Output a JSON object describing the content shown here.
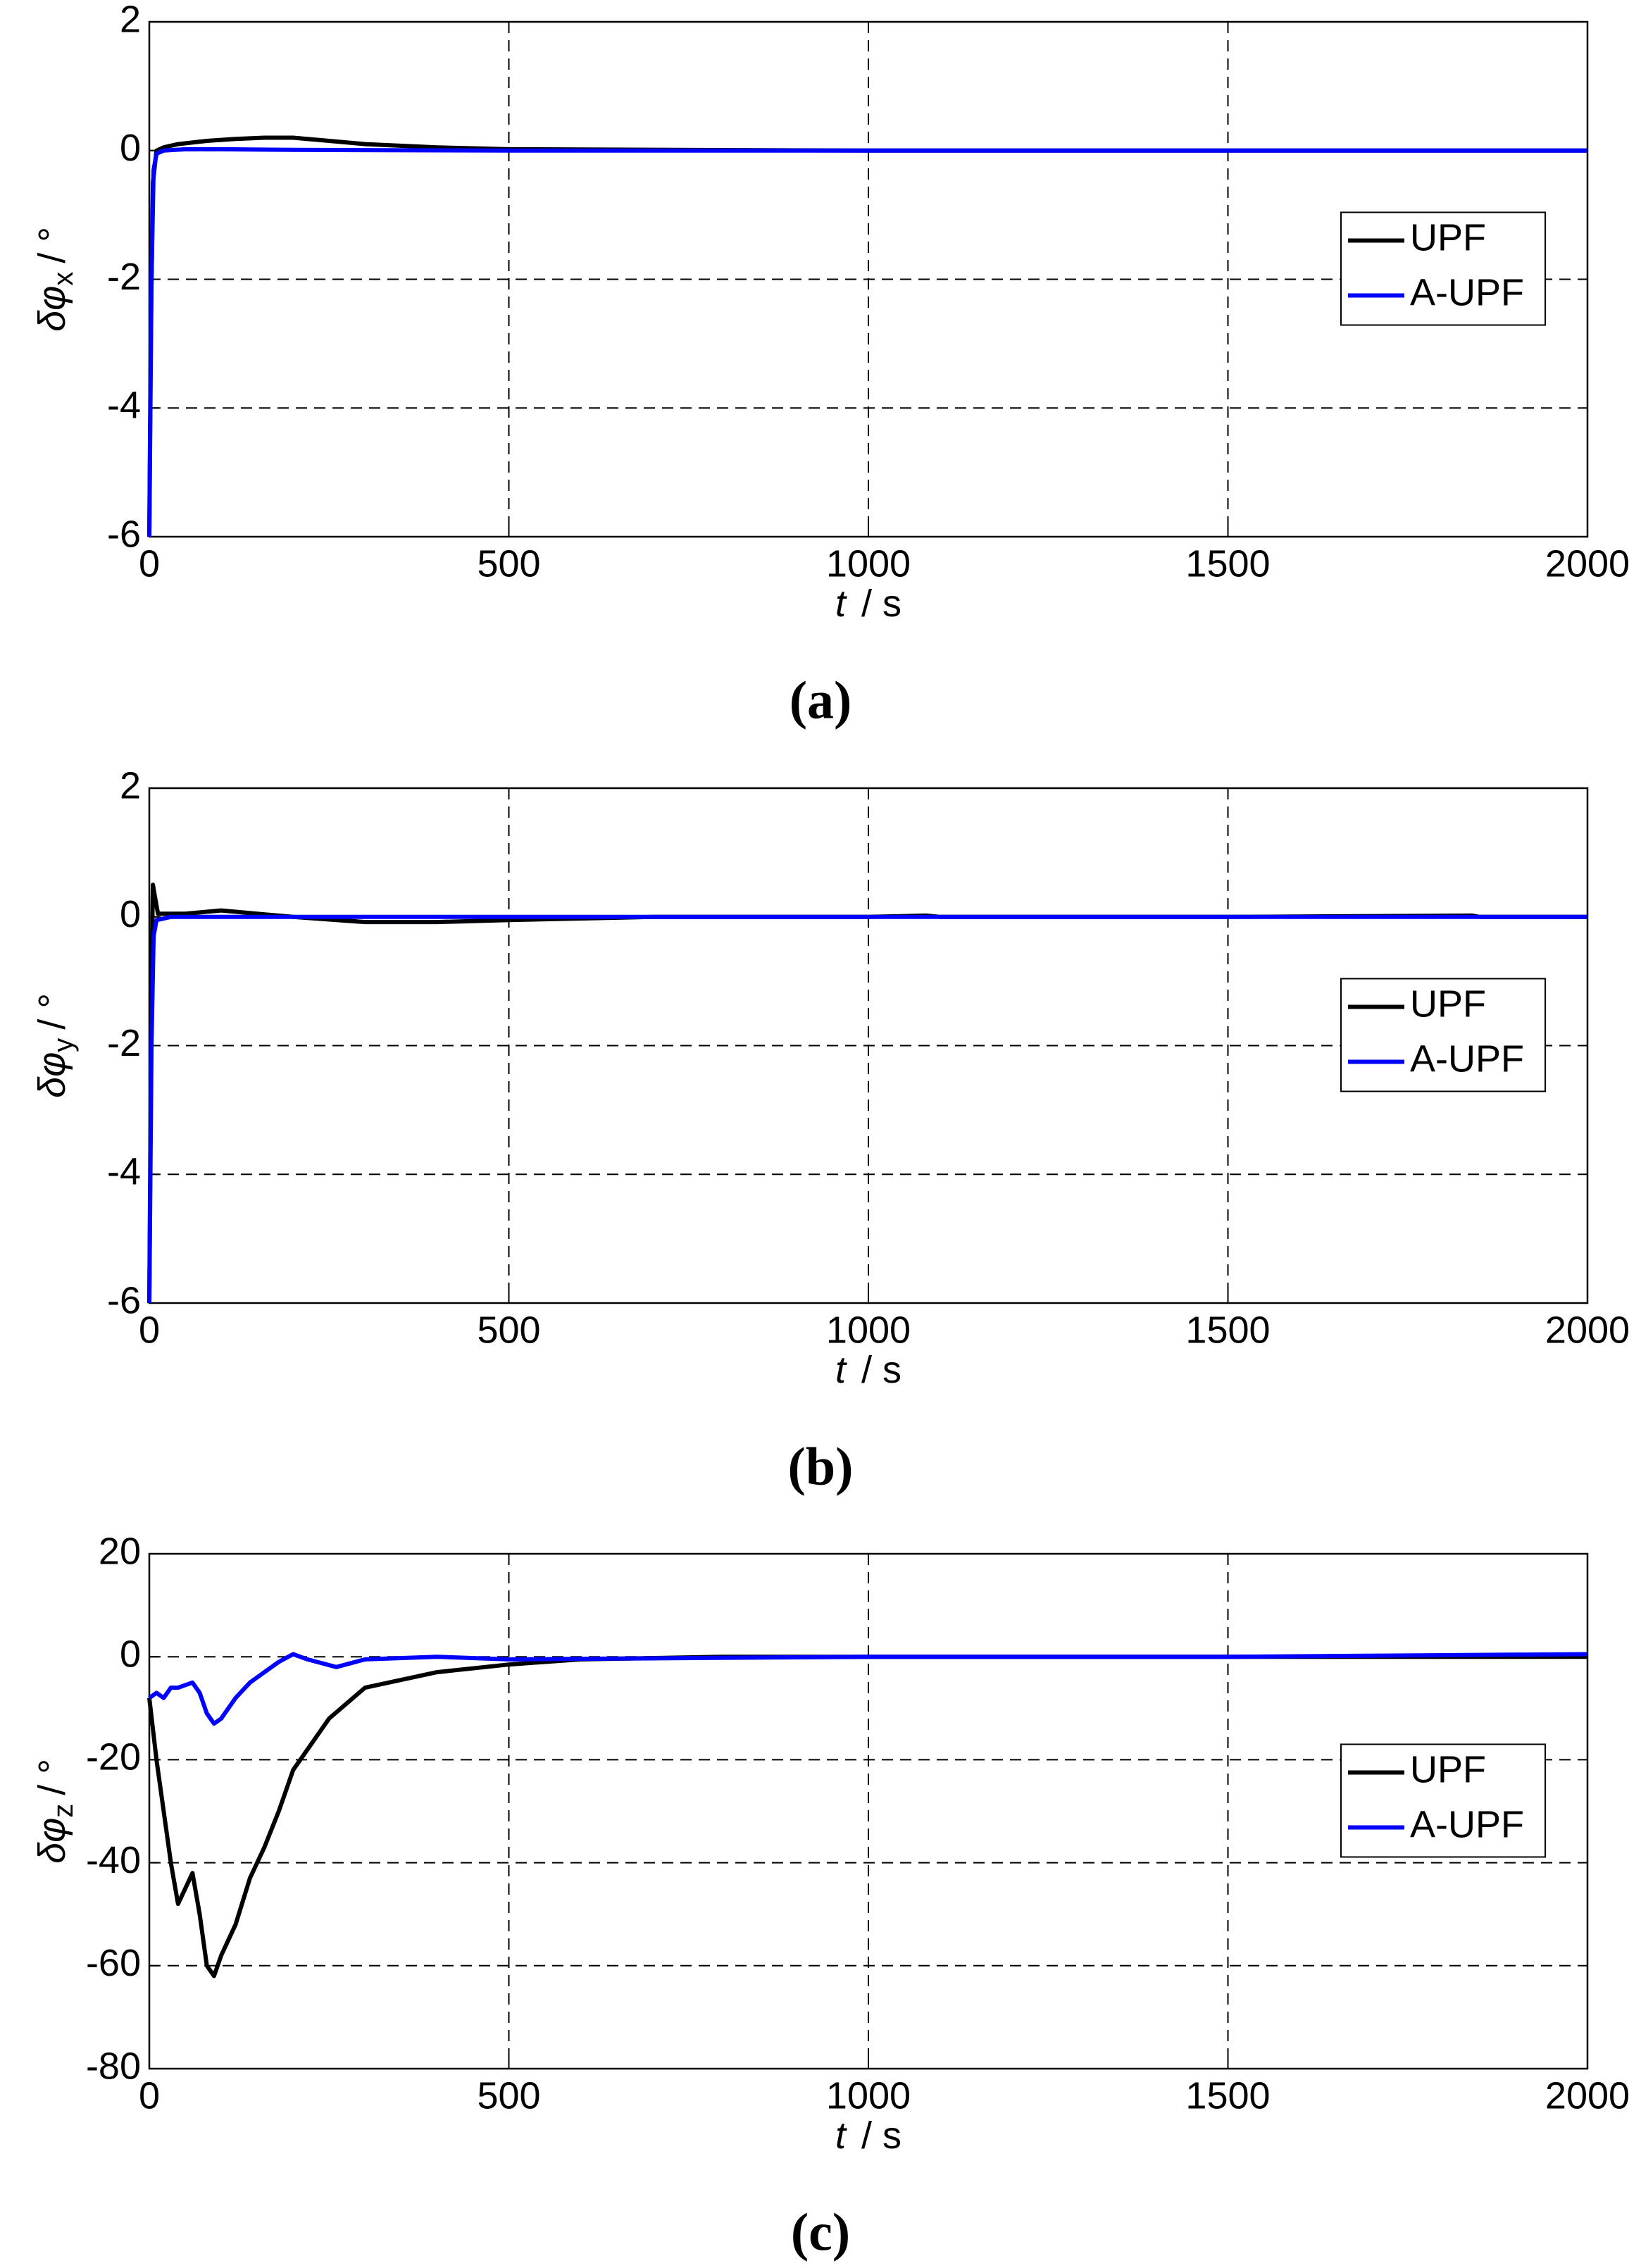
{
  "chart_data": [
    {
      "type": "line",
      "caption": "(a)",
      "xlabel": {
        "symbol": "t",
        "unit": "/ s"
      },
      "ylabel": {
        "symbol": "δφ",
        "subscript": "x",
        "unit": "/ °"
      },
      "xlim": [
        0,
        2000
      ],
      "xticks": [
        0,
        500,
        1000,
        1500,
        2000
      ],
      "ylim": [
        -6,
        2
      ],
      "yticks": [
        -6,
        -4,
        -2,
        0,
        2
      ],
      "grid": true,
      "legend": "right",
      "series": [
        {
          "name": "UPF",
          "color": "#000000",
          "x": [
            0,
            2,
            5,
            10,
            20,
            40,
            80,
            120,
            160,
            200,
            250,
            300,
            400,
            500,
            1000,
            1500,
            2000
          ],
          "values": [
            -6,
            -3,
            -0.5,
            0,
            0.05,
            0.1,
            0.15,
            0.18,
            0.2,
            0.2,
            0.15,
            0.1,
            0.05,
            0.02,
            0,
            0,
            0
          ]
        },
        {
          "name": "A-UPF",
          "color": "#0000ff",
          "x": [
            0,
            3,
            6,
            10,
            20,
            50,
            100,
            200,
            500,
            1000,
            2000
          ],
          "values": [
            -6,
            -2,
            -0.3,
            -0.05,
            0,
            0.02,
            0.02,
            0.01,
            0,
            0,
            0
          ]
        }
      ]
    },
    {
      "type": "line",
      "caption": "(b)",
      "xlabel": {
        "symbol": "t",
        "unit": "/ s"
      },
      "ylabel": {
        "symbol": "δφ",
        "subscript": "y",
        "unit": "/ °"
      },
      "xlim": [
        0,
        2000
      ],
      "xticks": [
        0,
        500,
        1000,
        1500,
        2000
      ],
      "ylim": [
        -6,
        2
      ],
      "yticks": [
        -6,
        -4,
        -2,
        0,
        2
      ],
      "grid": true,
      "legend": "right",
      "series": [
        {
          "name": "UPF",
          "color": "#000000",
          "x": [
            0,
            3,
            5,
            8,
            12,
            20,
            50,
            100,
            150,
            200,
            300,
            400,
            500,
            700,
            1000,
            1080,
            1100,
            1500,
            1840,
            1850,
            2000
          ],
          "values": [
            -6,
            -1,
            0.5,
            0.3,
            0.05,
            0.05,
            0.05,
            0.1,
            0.05,
            0,
            -0.08,
            -0.08,
            -0.05,
            0,
            0,
            0.02,
            0,
            0,
            0.02,
            0,
            0
          ]
        },
        {
          "name": "A-UPF",
          "color": "#0000ff",
          "x": [
            0,
            3,
            6,
            10,
            30,
            100,
            500,
            2000
          ],
          "values": [
            -6,
            -2,
            -0.3,
            -0.05,
            0,
            0,
            0,
            0
          ]
        }
      ]
    },
    {
      "type": "line",
      "caption": "(c)",
      "xlabel": {
        "symbol": "t",
        "unit": "/ s"
      },
      "ylabel": {
        "symbol": "δφ",
        "subscript": "z",
        "unit": "/ °"
      },
      "xlim": [
        0,
        2000
      ],
      "xticks": [
        0,
        500,
        1000,
        1500,
        2000
      ],
      "ylim": [
        -80,
        20
      ],
      "yticks": [
        -80,
        -60,
        -40,
        -20,
        0,
        20
      ],
      "grid": true,
      "legend": "right",
      "series": [
        {
          "name": "UPF",
          "color": "#000000",
          "x": [
            0,
            10,
            15,
            20,
            30,
            40,
            50,
            60,
            70,
            80,
            90,
            100,
            120,
            140,
            160,
            180,
            200,
            250,
            300,
            400,
            500,
            600,
            800,
            1000,
            1500,
            2000
          ],
          "values": [
            -8,
            -20,
            -25,
            -30,
            -40,
            -48,
            -45,
            -42,
            -50,
            -60,
            -62,
            -58,
            -52,
            -43,
            -37,
            -30,
            -22,
            -12,
            -6,
            -3,
            -1.5,
            -0.5,
            0,
            0,
            0,
            0
          ]
        },
        {
          "name": "A-UPF",
          "color": "#0000ff",
          "x": [
            0,
            10,
            20,
            30,
            40,
            50,
            60,
            70,
            80,
            90,
            100,
            120,
            140,
            160,
            180,
            200,
            220,
            260,
            300,
            400,
            500,
            1000,
            1500,
            2000
          ],
          "values": [
            -8,
            -7,
            -8,
            -6,
            -6,
            -5.5,
            -5,
            -7,
            -11,
            -13,
            -12,
            -8,
            -5,
            -3,
            -1,
            0.5,
            -0.5,
            -2,
            -0.5,
            0,
            -0.5,
            0,
            0,
            0.5
          ]
        }
      ]
    }
  ]
}
